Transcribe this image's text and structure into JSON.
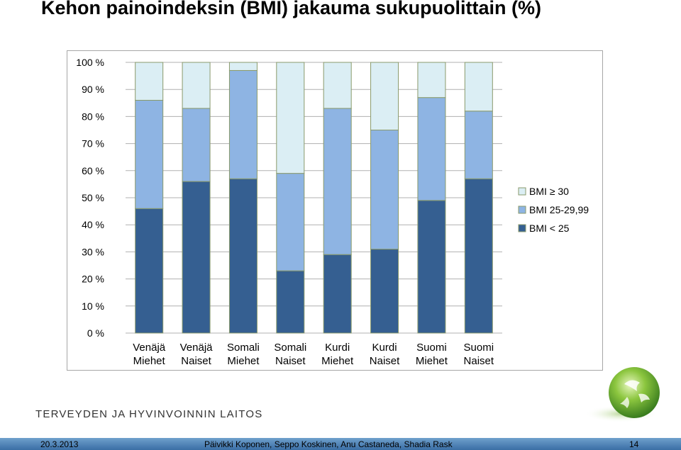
{
  "slide": {
    "title": "Kehon painoindeksin (BMI) jakauma sukupuolittain (%)",
    "organization": "TERVEYDEN JA HYVINVOINNIN LAITOS",
    "date": "20.3.2013",
    "authors": "Päivikki Koponen, Seppo Koskinen, Anu Castaneda, Shadia Rask",
    "page_number": "14"
  },
  "colors": {
    "bmi_under_25": "#355f91",
    "bmi_25_29": "#8eb4e3",
    "bmi_30_plus": "#dbeef4",
    "bar_outline": "#8a9a6b",
    "grid": "#b0b0b0",
    "footer_bar": "#4f81bd"
  },
  "chart_data": {
    "type": "bar",
    "stacked": true,
    "categories": [
      "Venäjä Miehet",
      "Venäjä Naiset",
      "Somali Miehet",
      "Somali Naiset",
      "Kurdi Miehet",
      "Kurdi Naiset",
      "Suomi Miehet",
      "Suomi Naiset"
    ],
    "category_lines": [
      [
        "Venäjä",
        "Miehet"
      ],
      [
        "Venäjä",
        "Naiset"
      ],
      [
        "Somali",
        "Miehet"
      ],
      [
        "Somali",
        "Naiset"
      ],
      [
        "Kurdi",
        "Miehet"
      ],
      [
        "Kurdi",
        "Naiset"
      ],
      [
        "Suomi",
        "Miehet"
      ],
      [
        "Suomi",
        "Naiset"
      ]
    ],
    "series": [
      {
        "name": "BMI < 25",
        "values": [
          46,
          56,
          57,
          23,
          29,
          31,
          49,
          57
        ]
      },
      {
        "name": "BMI 25-29,99",
        "values": [
          40,
          27,
          40,
          36,
          54,
          44,
          38,
          25
        ]
      },
      {
        "name": "BMI ≥ 30",
        "values": [
          14,
          17,
          3,
          41,
          17,
          25,
          13,
          18
        ]
      }
    ],
    "ylim": [
      0,
      100
    ],
    "yticks": [
      "0 %",
      "10 %",
      "20 %",
      "30 %",
      "40 %",
      "50 %",
      "60 %",
      "70 %",
      "80 %",
      "90 %",
      "100 %"
    ],
    "legend_order": [
      "BMI ≥ 30",
      "BMI 25-29,99",
      "BMI < 25"
    ],
    "legend_position": "right",
    "grid": true
  }
}
